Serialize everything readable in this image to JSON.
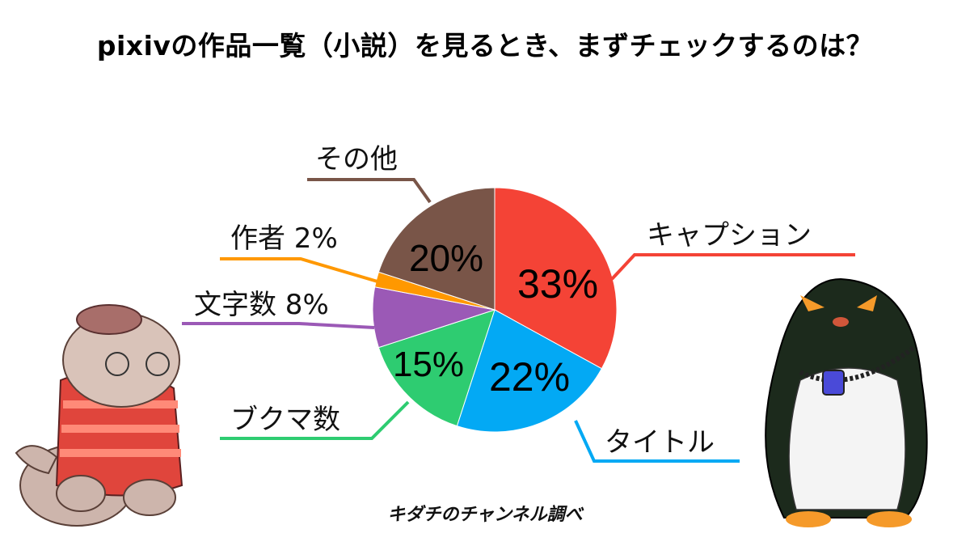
{
  "title": "pixivの作品一覧（小説）を見るとき、まずチェックするのは？",
  "source": "キダチのチャンネル調べ",
  "chart_data": {
    "type": "pie",
    "title": "pixivの作品一覧（小説）を見るとき、まずチェックするのは？",
    "start": "12 o'clock, clockwise",
    "slices": [
      {
        "label": "キャプション",
        "value": 33,
        "value_label": "33%",
        "color": "#F44336"
      },
      {
        "label": "タイトル",
        "value": 22,
        "value_label": "22%",
        "color": "#03A9F4"
      },
      {
        "label": "ブクマ数",
        "value": 15,
        "value_label": "15%",
        "color": "#2ECC71"
      },
      {
        "label": "文字数 8%",
        "value": 8,
        "value_label": "",
        "color": "#9B59B6"
      },
      {
        "label": "作者 2%",
        "value": 2,
        "value_label": "",
        "color": "#FF9800"
      },
      {
        "label": "その他",
        "value": 20,
        "value_label": "20%",
        "color": "#795548"
      }
    ]
  }
}
